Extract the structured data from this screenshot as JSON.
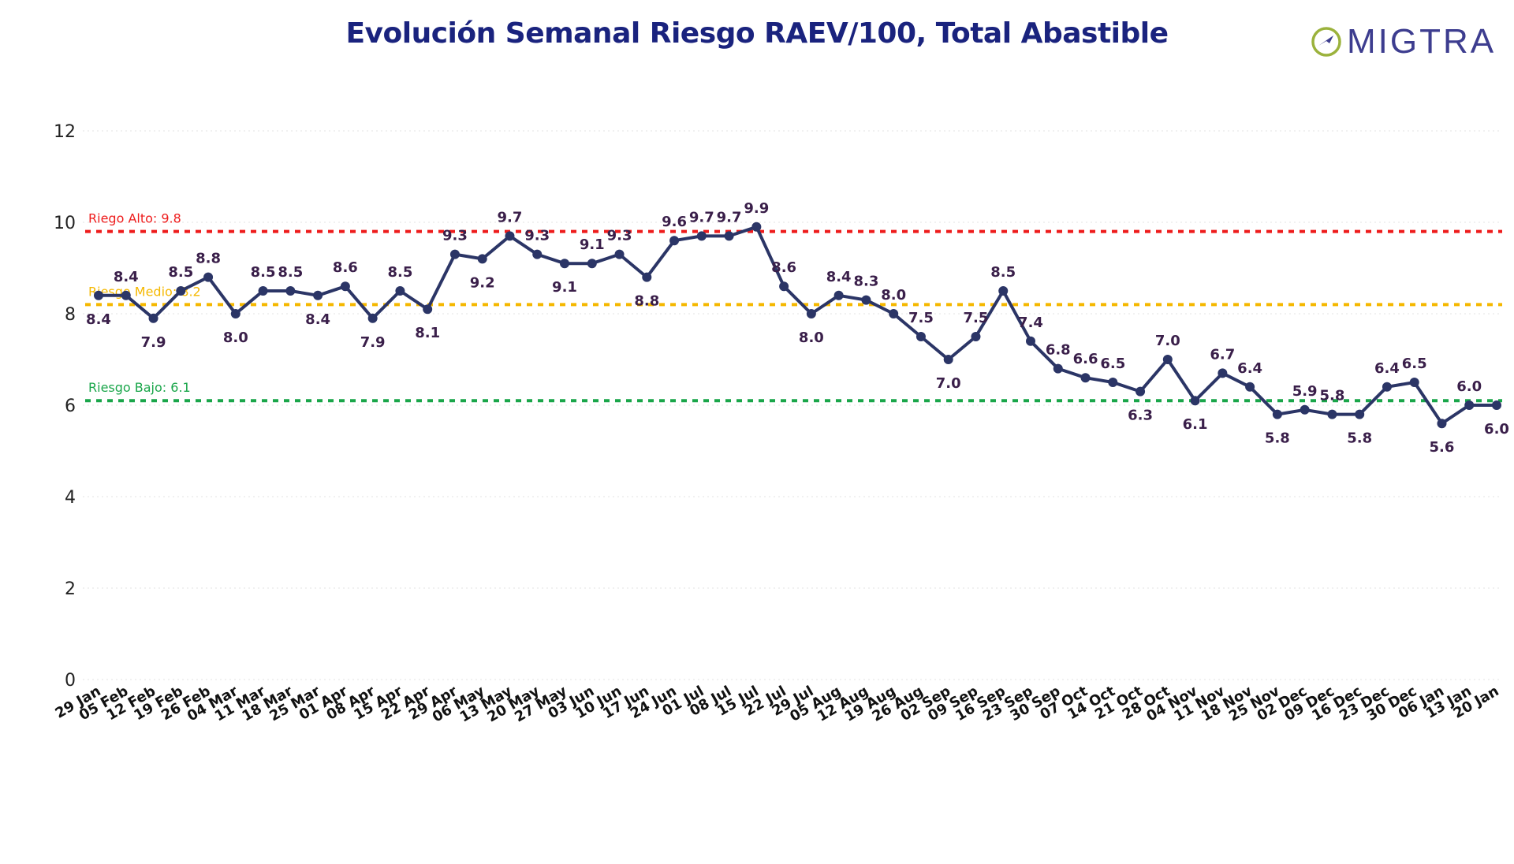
{
  "chart_data": {
    "type": "line",
    "title": "Evolución Semanal Riesgo RAEV/100, Total Abastible",
    "xlabel": "",
    "ylabel": "",
    "ylim": [
      0,
      12
    ],
    "yticks": [
      0,
      2,
      4,
      6,
      8,
      10,
      12
    ],
    "grid": true,
    "categories": [
      "29 Jan",
      "05 Feb",
      "12 Feb",
      "19 Feb",
      "26 Feb",
      "04 Mar",
      "11 Mar",
      "18 Mar",
      "25 Mar",
      "01 Apr",
      "08 Apr",
      "15 Apr",
      "22 Apr",
      "29 Apr",
      "06 May",
      "13 May",
      "20 May",
      "27 May",
      "03 Jun",
      "10 Jun",
      "17 Jun",
      "24 Jun",
      "01 Jul",
      "08 Jul",
      "15 Jul",
      "22 Jul",
      "29 Jul",
      "05 Aug",
      "12 Aug",
      "19 Aug",
      "26 Aug",
      "02 Sep",
      "09 Sep",
      "16 Sep",
      "23 Sep",
      "30 Sep",
      "07 Oct",
      "14 Oct",
      "21 Oct",
      "28 Oct",
      "04 Nov",
      "11 Nov",
      "18 Nov",
      "25 Nov",
      "02 Dec",
      "09 Dec",
      "16 Dec",
      "23 Dec",
      "30 Dec",
      "06 Jan",
      "13 Jan",
      "20 Jan"
    ],
    "values": [
      8.4,
      8.4,
      7.9,
      8.5,
      8.8,
      8.0,
      8.5,
      8.5,
      8.4,
      8.6,
      7.9,
      8.5,
      8.1,
      9.3,
      9.2,
      9.7,
      9.3,
      9.1,
      9.1,
      9.3,
      8.8,
      9.6,
      9.7,
      9.7,
      9.9,
      8.6,
      8.0,
      8.4,
      8.3,
      8.0,
      7.5,
      7.0,
      7.5,
      8.5,
      7.4,
      6.8,
      6.6,
      6.5,
      6.3,
      7.0,
      6.1,
      6.7,
      6.4,
      5.8,
      5.9,
      5.8,
      5.8,
      6.4,
      6.5,
      5.6,
      6.0,
      6.0
    ],
    "label_position": [
      "below",
      "above",
      "below",
      "above",
      "above",
      "below",
      "above",
      "above",
      "below",
      "above",
      "below",
      "above",
      "below",
      "above",
      "below",
      "above",
      "above",
      "below",
      "above",
      "above",
      "below",
      "above",
      "above",
      "above",
      "above",
      "above",
      "below",
      "above",
      "above",
      "above",
      "above",
      "below",
      "above",
      "above",
      "above",
      "above",
      "above",
      "above",
      "below",
      "above",
      "below",
      "above",
      "above",
      "below",
      "above",
      "above",
      "below",
      "above",
      "above",
      "below",
      "above",
      "below"
    ],
    "series_color": "#2b3566",
    "reference_lines": [
      {
        "label": "Riego Alto: 9.8",
        "value": 9.8,
        "color": "#ee1c1c"
      },
      {
        "label": "Riesgo Medio: 8.2",
        "value": 8.2,
        "color": "#f5b800"
      },
      {
        "label": "Riesgo Bajo: 6.1",
        "value": 6.1,
        "color": "#1aa64a"
      }
    ]
  },
  "logo": {
    "text": "MIGTRA",
    "icon": "omigtra-o-arrow-icon",
    "color": "#3d3d8f",
    "ring_color": "#9bb23c"
  }
}
